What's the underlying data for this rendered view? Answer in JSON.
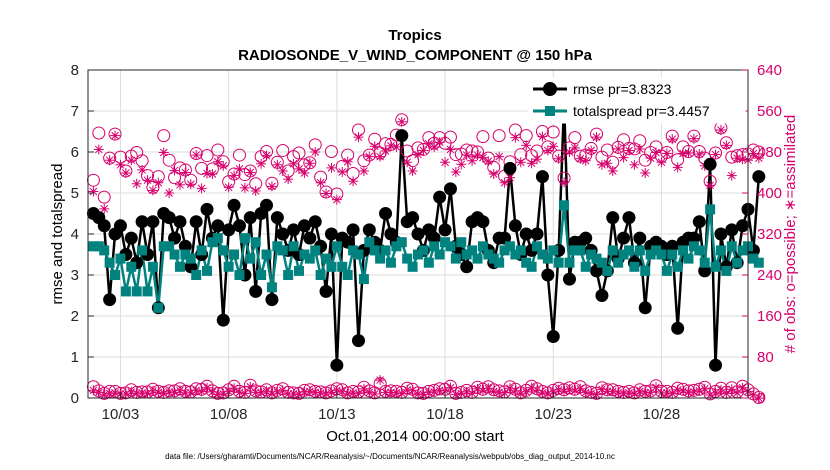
{
  "colors": {
    "left_axis": "#000000",
    "right_axis": "#d6006b",
    "rmse": "#000000",
    "spread": "#00827f",
    "grid": "#dedede"
  },
  "footer_text": "data file: /Users/gharamti/Documents/NCAR/Reanalysis/~/Documents/NCAR/Reanalysis/webpub/obs_diag_output_2014-10.nc",
  "chart_data": {
    "type": "line",
    "title": "Tropics",
    "subtitle": "RADIOSONDE_V_WIND_COMPONENT @ 150 hPa",
    "xlabel": "Oct.01,2014 00:00:00 start",
    "ylabel": "rmse and totalspread",
    "ylabel_right": "# of obs: o=possible; ∗=assimilated",
    "xlim": [
      1.5,
      32
    ],
    "ylim": [
      0,
      8
    ],
    "ylim_right": [
      0,
      640
    ],
    "x_ticks": [
      3,
      8,
      13,
      18,
      23,
      28
    ],
    "x_tick_labels": [
      "10/03",
      "10/08",
      "10/13",
      "10/18",
      "10/23",
      "10/28"
    ],
    "y_ticks": [
      "0",
      "1",
      "2",
      "3",
      "4",
      "5",
      "6",
      "7",
      "8"
    ],
    "y_ticks_right": [
      "0",
      "80",
      "160",
      "240",
      "320",
      "400",
      "480",
      "560",
      "640"
    ],
    "grid": true,
    "legend_position": "top-right",
    "x_start": 1.75,
    "x_step": 0.25,
    "series": [
      {
        "name": "rmse",
        "legend": "rmse pr=3.8323",
        "axis": "left",
        "values": [
          4.5,
          4.4,
          4.2,
          2.4,
          4.0,
          4.2,
          3.5,
          3.9,
          3.3,
          4.3,
          3.5,
          4.3,
          2.2,
          4.5,
          4.4,
          3.9,
          4.3,
          3.7,
          3.2,
          4.3,
          3.5,
          4.6,
          3.9,
          4.2,
          1.9,
          4.1,
          4.7,
          4.2,
          3.0,
          4.4,
          2.6,
          4.5,
          4.7,
          2.4,
          4.4,
          4.0,
          3.6,
          4.1,
          3.5,
          4.2,
          3.9,
          4.3,
          3.7,
          2.6,
          4.0,
          0.8,
          3.9,
          3.8,
          4.1,
          1.4,
          3.6,
          4.1,
          3.8,
          3.6,
          4.5,
          4.0,
          3.8,
          6.4,
          4.3,
          4.4,
          4.0,
          3.6,
          4.1,
          3.9,
          4.9,
          4.1,
          5.1,
          3.7,
          3.5,
          3.2,
          4.3,
          4.4,
          4.3,
          3.6,
          3.3,
          3.9,
          3.9,
          5.6,
          4.2,
          3.5,
          4.0,
          3.6,
          4.0,
          5.4,
          3.0,
          1.5,
          3.6,
          7.2,
          2.9,
          3.8,
          3.8,
          3.9,
          3.6,
          3.1,
          2.5,
          3.1,
          4.4,
          3.4,
          3.9,
          4.4,
          3.3,
          3.9,
          2.2,
          3.7,
          3.8,
          3.7,
          3.5,
          3.7,
          1.7,
          3.8,
          3.9,
          3.9,
          4.3,
          3.1,
          5.7,
          0.8,
          4.0,
          3.2,
          4.1,
          3.3,
          4.2,
          4.6,
          3.6,
          5.4
        ]
      },
      {
        "name": "totalspread",
        "legend": "totalspread pr=3.4457",
        "axis": "left",
        "values": [
          3.7,
          3.7,
          3.6,
          3.3,
          3.0,
          3.4,
          2.6,
          3.2,
          2.6,
          3.6,
          2.6,
          3.2,
          2.2,
          3.7,
          3.7,
          3.5,
          3.2,
          3.5,
          3.4,
          3.0,
          3.6,
          3.1,
          3.8,
          3.9,
          3.6,
          3.2,
          3.5,
          3.0,
          3.9,
          3.4,
          3.8,
          3.0,
          3.5,
          2.7,
          3.7,
          3.6,
          3.0,
          3.7,
          3.1,
          3.5,
          3.4,
          3.6,
          3.0,
          3.4,
          3.2,
          3.7,
          3.2,
          3.0,
          3.6,
          3.5,
          2.9,
          3.8,
          3.6,
          3.4,
          3.6,
          3.3,
          3.7,
          3.8,
          3.4,
          3.2,
          3.5,
          3.6,
          3.3,
          3.7,
          3.5,
          3.8,
          3.7,
          3.4,
          3.8,
          3.5,
          3.6,
          3.4,
          3.7,
          3.5,
          3.4,
          3.3,
          3.6,
          3.7,
          3.5,
          3.6,
          3.3,
          3.2,
          3.7,
          3.5,
          3.4,
          3.6,
          3.3,
          4.7,
          3.3,
          3.6,
          3.6,
          3.2,
          3.5,
          3.4,
          3.3,
          3.1,
          3.6,
          3.3,
          3.5,
          3.6,
          3.2,
          3.6,
          3.1,
          3.5,
          3.6,
          3.5,
          3.1,
          3.5,
          3.2,
          3.6,
          3.4,
          3.7,
          3.6,
          3.3,
          4.6,
          3.2,
          3.6,
          3.1,
          3.7,
          3.3,
          3.6,
          3.7,
          3.4,
          3.3
        ]
      },
      {
        "name": "obs_possible",
        "axis": "right",
        "values": [
          425,
          517,
          392,
          468,
          515,
          470,
          443,
          472,
          479,
          463,
          434,
          411,
          432,
          512,
          464,
          430,
          449,
          445,
          425,
          477,
          448,
          473,
          447,
          484,
          461,
          422,
          437,
          474,
          436,
          443,
          418,
          471,
          481,
          419,
          460,
          483,
          443,
          471,
          478,
          455,
          459,
          494,
          431,
          402,
          481,
          398,
          452,
          474,
          438,
          523,
          463,
          474,
          505,
          478,
          496,
          495,
          513,
          543,
          482,
          463,
          488,
          485,
          508,
          497,
          508,
          497,
          509,
          475,
          476,
          484,
          482,
          480,
          510,
          468,
          450,
          512,
          433,
          461,
          523,
          475,
          512,
          473,
          482,
          520,
          490,
          519,
          472,
          429,
          488,
          508,
          472,
          474,
          487,
          515,
          470,
          484,
          460,
          489,
          504,
          487,
          486,
          502,
          464,
          479,
          490,
          472,
          479,
          511,
          465,
          490,
          481,
          511,
          481,
          468,
          423,
          478,
          527,
          498,
          470,
          473,
          475,
          476,
          484,
          480
        ]
      },
      {
        "name": "obs_assimilated",
        "axis": "right",
        "values": [
          403,
          485,
          369,
          464,
          512,
          455,
          439,
          464,
          418,
          445,
          425,
          405,
          420,
          479,
          400,
          444,
          416,
          440,
          417,
          474,
          409,
          438,
          437,
          461,
          453,
          411,
          434,
          447,
          410,
          440,
          404,
          457,
          473,
          413,
          455,
          443,
          427,
          457,
          447,
          439,
          458,
          480,
          420,
          399,
          449,
          387,
          441,
          461,
          423,
          509,
          443,
          471,
          491,
          471,
          482,
          492,
          490,
          539,
          460,
          443,
          475,
          483,
          496,
          490,
          499,
          460,
          485,
          441,
          456,
          474,
          463,
          474,
          469,
          462,
          437,
          471,
          420,
          430,
          508,
          460,
          493,
          458,
          466,
          510,
          483,
          491,
          467,
          421,
          480,
          488,
          467,
          463,
          483,
          509,
          455,
          458,
          443,
          486,
          469,
          483,
          455,
          486,
          439,
          468,
          479,
          460,
          477,
          505,
          450,
          477,
          478,
          506,
          476,
          453,
          415,
          475,
          523,
          493,
          434,
          468,
          466,
          464,
          477,
          468
        ]
      },
      {
        "name": "obs_possible_low",
        "axis": "right",
        "values": [
          22,
          14,
          9,
          13,
          13,
          9,
          10,
          16,
          11,
          12,
          12,
          17,
          13,
          11,
          14,
          14,
          18,
          13,
          12,
          18,
          17,
          23,
          14,
          9,
          10,
          16,
          23,
          13,
          11,
          25,
          14,
          12,
          16,
          10,
          15,
          18,
          11,
          10,
          9,
          15,
          16,
          13,
          12,
          10,
          14,
          18,
          16,
          10,
          13,
          12,
          21,
          14,
          10,
          28,
          13,
          14,
          13,
          11,
          19,
          17,
          10,
          9,
          13,
          15,
          18,
          17,
          23,
          9,
          11,
          15,
          11,
          21,
          17,
          22,
          16,
          14,
          12,
          22,
          17,
          10,
          15,
          23,
          18,
          13,
          10,
          15,
          19,
          16,
          20,
          17,
          22,
          14,
          11,
          9,
          20,
          16,
          16,
          13,
          11,
          13,
          10,
          16,
          13,
          14,
          24,
          13,
          13,
          11,
          19,
          17,
          14,
          15,
          17,
          21,
          8,
          13,
          19,
          11,
          20,
          12,
          23,
          16,
          8,
          1
        ]
      },
      {
        "name": "obs_assimilated_low",
        "axis": "right",
        "values": [
          15,
          11,
          6,
          9,
          10,
          8,
          8,
          12,
          9,
          10,
          9,
          14,
          11,
          9,
          12,
          11,
          15,
          10,
          10,
          15,
          13,
          20,
          12,
          7,
          8,
          13,
          19,
          11,
          9,
          22,
          11,
          10,
          13,
          8,
          12,
          15,
          8,
          8,
          7,
          12,
          13,
          11,
          10,
          8,
          11,
          15,
          13,
          8,
          10,
          9,
          18,
          11,
          8,
          35,
          11,
          11,
          10,
          9,
          16,
          15,
          8,
          7,
          11,
          12,
          15,
          14,
          20,
          7,
          9,
          12,
          9,
          18,
          14,
          19,
          13,
          11,
          10,
          19,
          14,
          8,
          12,
          20,
          15,
          10,
          8,
          12,
          16,
          13,
          17,
          14,
          18,
          11,
          9,
          7,
          17,
          13,
          13,
          10,
          9,
          10,
          8,
          13,
          10,
          11,
          21,
          10,
          10,
          9,
          16,
          14,
          11,
          12,
          14,
          18,
          6,
          10,
          16,
          9,
          17,
          10,
          20,
          13,
          6,
          0
        ]
      }
    ]
  }
}
